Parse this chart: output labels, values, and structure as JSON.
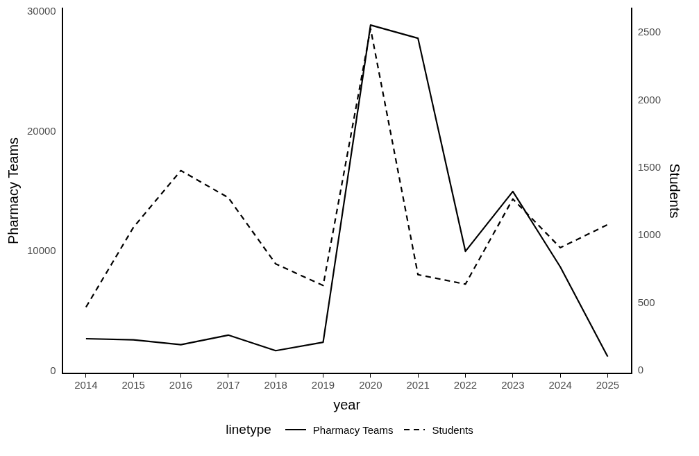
{
  "chart_data": {
    "type": "line",
    "xlabel": "year",
    "ylabel": "Pharmacy Teams",
    "y2label": "Students",
    "legend_title": "linetype",
    "legend": "bottom",
    "grid": false,
    "marker": "none",
    "categories": [
      "2014",
      "2015",
      "2016",
      "2017",
      "2018",
      "2019",
      "2020",
      "2021",
      "2022",
      "2023",
      "2024",
      "2025"
    ],
    "series": [
      {
        "name": "Pharmacy Teams",
        "color": "#000000",
        "line_style": "solid",
        "values": [
          2700,
          2600,
          2200,
          3000,
          1700,
          2400,
          28900,
          27800,
          10000,
          15000,
          8700,
          1200
        ]
      },
      {
        "name": "Students",
        "color": "#000000",
        "line_style": "dashed",
        "axis": "y2",
        "values": [
          470,
          1060,
          1480,
          1280,
          790,
          630,
          2530,
          710,
          640,
          1270,
          910,
          1080
        ]
      }
    ],
    "ylim": [
      -200,
      30300
    ],
    "yticks": [
      0,
      10000,
      20000,
      30000
    ],
    "y2lim": [
      -20,
      2680
    ],
    "y2ticks": [
      0,
      500,
      1000,
      1500,
      2000,
      2500
    ]
  }
}
